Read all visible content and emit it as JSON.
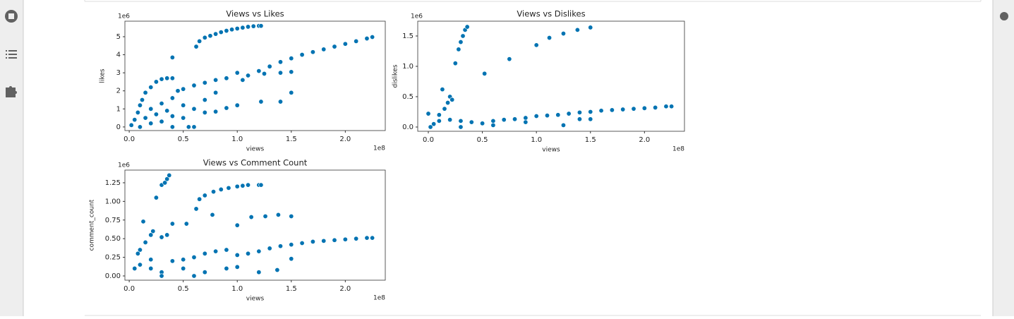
{
  "chart_data": [
    {
      "type": "scatter",
      "title": "Views vs Likes",
      "x_label": "views",
      "y_label": "likes",
      "x_offset_label": "1e8",
      "y_offset_label": "1e6",
      "color": "#0173b2",
      "grid": false,
      "xlim": [
        -0.04,
        2.37
      ],
      "ylim": [
        -0.2,
        5.86
      ],
      "xticks": [
        {
          "value": 0,
          "label": "0.0"
        },
        0.5,
        {
          "value": 1,
          "label": "1.0"
        },
        1.5,
        {
          "value": 2,
          "label": "2.0"
        }
      ],
      "yticks": [
        0,
        1,
        2,
        3,
        4,
        5
      ],
      "x": [
        0.62,
        0.65,
        0.7,
        0.75,
        0.8,
        0.85,
        0.9,
        0.95,
        1.0,
        1.05,
        1.1,
        1.15,
        1.2,
        1.22,
        1.05,
        1.1,
        1.2,
        1.3,
        1.4,
        1.5,
        1.6,
        1.7,
        1.8,
        1.9,
        2.0,
        2.1,
        2.2,
        2.25,
        0.4,
        1.25,
        1.4,
        1.5,
        1.22,
        1.4,
        1.5,
        1.0,
        0.9,
        0.8,
        0.7,
        0.02,
        0.05,
        0.08,
        0.1,
        0.12,
        0.15,
        0.2,
        0.25,
        0.3,
        0.35,
        0.4,
        0.2,
        0.3,
        0.35,
        0.4,
        0.45,
        0.5,
        0.6,
        0.7,
        0.8,
        0.9,
        1.0,
        0.5,
        0.6,
        0.7,
        0.8,
        0.3,
        0.4,
        0.5,
        0.55,
        0.4,
        0.6,
        0.1,
        0.2,
        0.25,
        0.15
      ],
      "y": [
        4.45,
        4.75,
        4.95,
        5.05,
        5.15,
        5.25,
        5.33,
        5.4,
        5.45,
        5.5,
        5.55,
        5.58,
        5.6,
        5.6,
        2.6,
        2.85,
        3.1,
        3.35,
        3.6,
        3.8,
        4.0,
        4.15,
        4.3,
        4.45,
        4.6,
        4.75,
        4.9,
        4.98,
        3.85,
        2.95,
        3.0,
        3.05,
        1.4,
        1.4,
        1.9,
        1.2,
        1.05,
        0.85,
        0.8,
        0.1,
        0.4,
        0.8,
        1.2,
        1.5,
        1.9,
        2.2,
        2.5,
        2.65,
        2.7,
        2.7,
        1.0,
        1.3,
        0.9,
        1.6,
        2.0,
        2.1,
        2.3,
        2.45,
        2.6,
        2.7,
        3.0,
        1.2,
        1.0,
        1.5,
        1.9,
        0.3,
        0.6,
        0.5,
        0.0,
        0.0,
        0.0,
        0.0,
        0.2,
        0.7,
        0.5
      ]
    },
    {
      "type": "scatter",
      "title": "Views vs Dislikes",
      "x_label": "views",
      "y_label": "dislikes",
      "x_offset_label": "1e8",
      "y_offset_label": "1e6",
      "color": "#0173b2",
      "grid": false,
      "xlim": [
        -0.098,
        2.37
      ],
      "ylim": [
        -0.07,
        1.744
      ],
      "xticks": [
        {
          "value": 0,
          "label": "0.0"
        },
        0.5,
        {
          "value": 1,
          "label": "1.0"
        },
        1.5,
        {
          "value": 2,
          "label": "2.0"
        }
      ],
      "yticks": [
        {
          "value": 0,
          "label": "0.0"
        },
        0.5,
        {
          "value": 1,
          "label": "1.0"
        },
        1.5
      ],
      "x": [
        0.2,
        0.22,
        0.18,
        0.15,
        0.25,
        0.28,
        0.3,
        0.32,
        0.34,
        0.36,
        0.13,
        0.52,
        0.75,
        1.0,
        1.12,
        1.25,
        1.38,
        1.5,
        0.1,
        1.3,
        1.4,
        1.5,
        1.6,
        1.7,
        1.8,
        1.9,
        2.0,
        2.1,
        2.2,
        2.25,
        0.0,
        0.05,
        0.1,
        0.2,
        0.3,
        0.4,
        0.5,
        0.6,
        0.7,
        0.8,
        0.9,
        1.0,
        1.1,
        1.2,
        1.25,
        1.4,
        1.5,
        0.3,
        0.6,
        0.9,
        0.02
      ],
      "y": [
        0.5,
        0.45,
        0.4,
        0.3,
        1.05,
        1.28,
        1.4,
        1.5,
        1.6,
        1.65,
        0.62,
        0.88,
        1.12,
        1.35,
        1.47,
        1.54,
        1.6,
        1.64,
        0.2,
        0.22,
        0.24,
        0.25,
        0.27,
        0.28,
        0.29,
        0.3,
        0.31,
        0.32,
        0.34,
        0.34,
        0.22,
        0.05,
        0.1,
        0.12,
        0.1,
        0.08,
        0.06,
        0.1,
        0.12,
        0.13,
        0.15,
        0.18,
        0.19,
        0.2,
        0.03,
        0.13,
        0.13,
        0.0,
        0.03,
        0.08,
        0.0
      ]
    },
    {
      "type": "scatter",
      "title": "Views vs Comment Count",
      "x_label": "views",
      "y_label": "comment_count",
      "x_offset_label": "1e8",
      "y_offset_label": "1e6",
      "color": "#0173b2",
      "grid": false,
      "xlim": [
        -0.04,
        2.37
      ],
      "ylim": [
        -0.057,
        1.42
      ],
      "xticks": [
        {
          "value": 0,
          "label": "0.0"
        },
        0.5,
        {
          "value": 1,
          "label": "1.0"
        },
        1.5,
        {
          "value": 2,
          "label": "2.0"
        }
      ],
      "yticks": [
        {
          "value": 0,
          "label": "0.00"
        },
        0.25,
        {
          "value": 0.5,
          "label": "0.50"
        },
        0.75,
        {
          "value": 1,
          "label": "1.00"
        },
        1.25
      ],
      "x": [
        0.3,
        0.33,
        0.35,
        0.37,
        0.25,
        0.22,
        0.2,
        0.15,
        0.1,
        0.08,
        0.13,
        0.3,
        0.35,
        0.2,
        0.62,
        0.65,
        0.7,
        0.78,
        0.85,
        0.92,
        1.0,
        1.05,
        1.1,
        1.2,
        1.22,
        0.4,
        0.53,
        0.77,
        1.0,
        1.13,
        1.26,
        1.38,
        1.5,
        1.0,
        1.1,
        1.2,
        1.3,
        1.4,
        1.5,
        1.6,
        1.7,
        1.8,
        1.9,
        2.0,
        2.1,
        2.2,
        2.25,
        0.05,
        0.1,
        0.2,
        0.3,
        0.4,
        0.5,
        0.6,
        0.7,
        0.8,
        0.9,
        0.5,
        0.7,
        0.9,
        1.0,
        1.2,
        1.37,
        1.5,
        0.3,
        0.6
      ],
      "y": [
        1.22,
        1.25,
        1.3,
        1.35,
        1.05,
        0.6,
        0.55,
        0.45,
        0.35,
        0.3,
        0.73,
        0.52,
        0.55,
        0.22,
        0.9,
        1.03,
        1.08,
        1.13,
        1.16,
        1.18,
        1.2,
        1.21,
        1.22,
        1.22,
        1.22,
        0.7,
        0.7,
        0.82,
        0.68,
        0.79,
        0.8,
        0.82,
        0.8,
        0.28,
        0.3,
        0.33,
        0.37,
        0.4,
        0.42,
        0.44,
        0.46,
        0.47,
        0.48,
        0.49,
        0.5,
        0.51,
        0.51,
        0.1,
        0.15,
        0.1,
        0.05,
        0.2,
        0.22,
        0.25,
        0.3,
        0.33,
        0.35,
        0.1,
        0.05,
        0.1,
        0.12,
        0.05,
        0.08,
        0.23,
        0.0,
        0.0
      ]
    }
  ]
}
